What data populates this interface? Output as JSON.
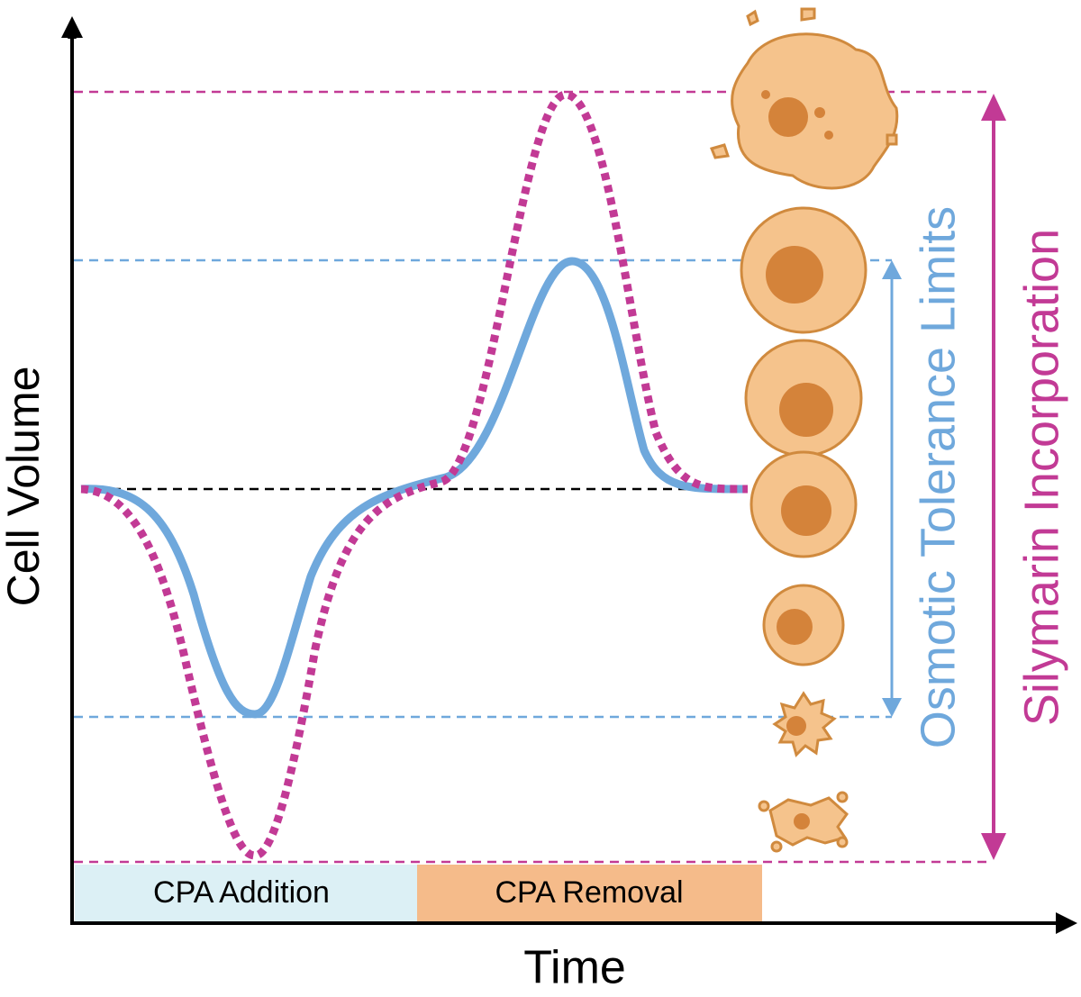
{
  "axes": {
    "y_label": "Cell Volume",
    "x_label": "Time"
  },
  "phases": [
    "CPA Addition",
    "CPA Removal"
  ],
  "limits": {
    "osmotic": "Osmotic Tolerance Limits",
    "silymarin": "Silymarin Incorporation"
  }
}
